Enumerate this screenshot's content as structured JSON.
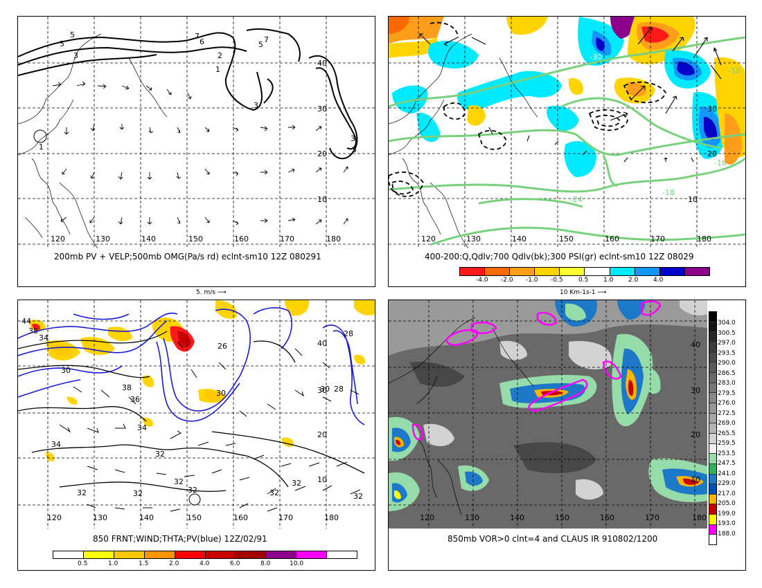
{
  "panels": [
    {
      "id": "tl",
      "caption": "200mb PV + VELP;500mb OMG(Pa/s rd) eclnt-sm10 12Z 080291",
      "lon_labels": [
        "120",
        "130",
        "140",
        "150",
        "160",
        "170",
        "180"
      ],
      "lat_labels": [
        "10",
        "20",
        "30",
        "40"
      ],
      "contour_labels": [
        "5",
        "5",
        "3",
        "7",
        "6",
        "2",
        "5",
        "7",
        "1",
        "3",
        "3",
        "1",
        "3",
        "2"
      ],
      "reference_vector": "5. m/s"
    },
    {
      "id": "tr",
      "caption": "400-200:Q,Qdlv;700 Qdlv(bk);300 PSI(gr) eclnt-sm10 12Z 08029",
      "lon_labels": [
        "120",
        "130",
        "140",
        "150",
        "160",
        "170",
        "180"
      ],
      "lat_labels": [
        "10",
        "20",
        "30"
      ],
      "contour_labels": [
        "-30",
        "-18",
        "-18",
        "-24",
        "-18"
      ],
      "reference_vector": "10 Km-1s-1",
      "colorbar": {
        "labels": [
          "-4.0",
          "-2.0",
          "-1.0",
          "-0.5",
          "0.5",
          "1.0",
          "2.0",
          "4.0"
        ],
        "colors": [
          "#ff1a1a",
          "#ff6a00",
          "#ff9e1a",
          "#ffd400",
          "#ffff33",
          "#ffffff",
          "#00eaff",
          "#1496ff",
          "#0000c8",
          "#8a008a"
        ]
      }
    },
    {
      "id": "bl",
      "caption": "850 FRNT;WIND;THTA;PV(blue) 12Z/02/91",
      "lon_labels": [
        "120",
        "130",
        "140",
        "150",
        "160",
        "170",
        "180"
      ],
      "lat_labels": [
        "10",
        "20",
        "30",
        "40"
      ],
      "contour_labels": [
        "44",
        "38",
        "34",
        "30",
        "38",
        "36",
        "34",
        "34",
        "26",
        "30",
        "28",
        "32",
        "32",
        "32",
        "32",
        "32",
        "32",
        "32",
        "32",
        "28",
        "30"
      ],
      "colorbar": {
        "labels": [
          "0.5",
          "1.0",
          "1.5",
          "2.0",
          "4.0",
          "6.0",
          "8.0",
          "10.0"
        ],
        "colors": [
          "#ffffff",
          "#ffff00",
          "#ffc800",
          "#ff9600",
          "#ff0000",
          "#c80000",
          "#a00000",
          "#8c008c",
          "#ff00ff",
          "#ffffff"
        ]
      }
    },
    {
      "id": "br",
      "caption": "850mb VOR>0 clnt=4 and CLAUS IR 910802/1200",
      "lon_labels": [
        "120",
        "130",
        "140",
        "150",
        "160",
        "170",
        "180"
      ],
      "lat_labels": [
        "10",
        "20",
        "30",
        "40"
      ],
      "colorbar": {
        "labels": [
          "304.0",
          "300.5",
          "297.0",
          "293.5",
          "290.0",
          "286.5",
          "283.0",
          "279.5",
          "276.0",
          "272.5",
          "269.0",
          "265.5",
          "259.5",
          "253.5",
          "247.5",
          "241.0",
          "229.0",
          "217.0",
          "205.0",
          "199.0",
          "193.0",
          "188.0"
        ],
        "colors": [
          "#000000",
          "#141414",
          "#282828",
          "#3c3c3c",
          "#4b4b4b",
          "#5a5a5a",
          "#696969",
          "#787878",
          "#878787",
          "#969696",
          "#a5a5a5",
          "#b4b4b4",
          "#d2d2d2",
          "#f0f0f0",
          "#96dcaa",
          "#2fb45a",
          "#1e78c8",
          "#0050b4",
          "#ffb400",
          "#c80000",
          "#ffff00",
          "#ff00ff"
        ]
      }
    }
  ]
}
